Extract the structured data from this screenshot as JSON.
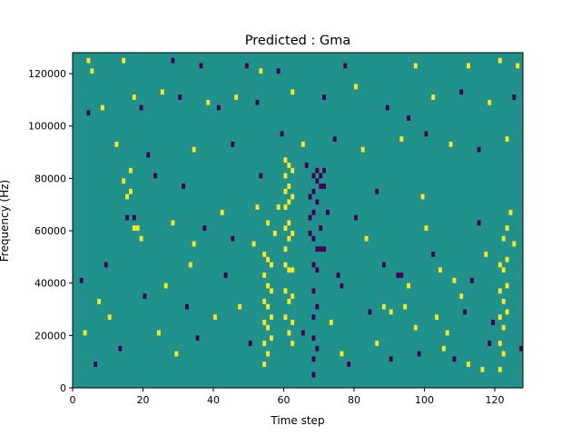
{
  "chart_data": {
    "type": "heatmap",
    "title": "Predicted : Gma",
    "xlabel": "Time step",
    "ylabel": "Frequency (Hz)",
    "xlim": [
      0,
      128
    ],
    "ylim": [
      0,
      128000
    ],
    "xticks": [
      0,
      20,
      40,
      60,
      80,
      100,
      120
    ],
    "xtick_labels": [
      "0",
      "20",
      "40",
      "60",
      "80",
      "100",
      "120"
    ],
    "yticks": [
      0,
      20000,
      40000,
      60000,
      80000,
      100000,
      120000
    ],
    "ytick_labels": [
      "0",
      "20000",
      "40000",
      "60000",
      "80000",
      "100000",
      "120000"
    ],
    "colors": {
      "background": "#21918c",
      "high": "#fde725",
      "low": "#440154"
    },
    "value_legend": {
      "background": 0,
      "high": 1,
      "low": -1
    },
    "grid": false,
    "bins": {
      "time_steps": 128,
      "frequency_bins": 64,
      "bin_width_hz": 2000
    },
    "cells": [
      [
        4,
        124000,
        1
      ],
      [
        5,
        120000,
        1
      ],
      [
        14,
        124000,
        1
      ],
      [
        28,
        124000,
        -1
      ],
      [
        36,
        122000,
        -1
      ],
      [
        49,
        122000,
        -1
      ],
      [
        53,
        120000,
        1
      ],
      [
        58,
        120000,
        -1
      ],
      [
        77,
        122000,
        -1
      ],
      [
        97,
        122000,
        1
      ],
      [
        112,
        122000,
        1
      ],
      [
        121,
        124000,
        1
      ],
      [
        126,
        122000,
        1
      ],
      [
        4,
        104000,
        -1
      ],
      [
        8,
        106000,
        1
      ],
      [
        17,
        110000,
        1
      ],
      [
        19,
        106000,
        -1
      ],
      [
        25,
        112000,
        1
      ],
      [
        30,
        110000,
        -1
      ],
      [
        38,
        108000,
        1
      ],
      [
        41,
        106000,
        -1
      ],
      [
        46,
        110000,
        1
      ],
      [
        52,
        108000,
        -1
      ],
      [
        62,
        112000,
        1
      ],
      [
        71,
        110000,
        -1
      ],
      [
        80,
        114000,
        1
      ],
      [
        89,
        106000,
        -1
      ],
      [
        95,
        102000,
        -1
      ],
      [
        102,
        110000,
        1
      ],
      [
        110,
        112000,
        -1
      ],
      [
        118,
        108000,
        1
      ],
      [
        125,
        110000,
        -1
      ],
      [
        12,
        92000,
        1
      ],
      [
        21,
        88000,
        -1
      ],
      [
        34,
        90000,
        1
      ],
      [
        45,
        92000,
        -1
      ],
      [
        59,
        96000,
        -1
      ],
      [
        65,
        92000,
        1
      ],
      [
        74,
        94000,
        -1
      ],
      [
        82,
        90000,
        1
      ],
      [
        93,
        94000,
        1
      ],
      [
        100,
        96000,
        -1
      ],
      [
        107,
        92000,
        1
      ],
      [
        115,
        90000,
        -1
      ],
      [
        123,
        94000,
        1
      ],
      [
        14,
        78000,
        1
      ],
      [
        15,
        72000,
        1
      ],
      [
        15,
        64000,
        -1
      ],
      [
        16,
        82000,
        1
      ],
      [
        16,
        74000,
        1
      ],
      [
        17,
        64000,
        -1
      ],
      [
        17,
        60000,
        1
      ],
      [
        18,
        60000,
        1
      ],
      [
        19,
        56000,
        1
      ],
      [
        23,
        80000,
        -1
      ],
      [
        28,
        62000,
        1
      ],
      [
        31,
        76000,
        -1
      ],
      [
        34,
        54000,
        1
      ],
      [
        37,
        60000,
        -1
      ],
      [
        42,
        66000,
        1
      ],
      [
        45,
        56000,
        -1
      ],
      [
        51,
        54000,
        1
      ],
      [
        52,
        68000,
        1
      ],
      [
        53,
        80000,
        -1
      ],
      [
        55,
        62000,
        1
      ],
      [
        57,
        58000,
        1
      ],
      [
        58,
        68000,
        1
      ],
      [
        60,
        86000,
        1
      ],
      [
        60,
        80000,
        1
      ],
      [
        60,
        74000,
        1
      ],
      [
        60,
        68000,
        1
      ],
      [
        60,
        60000,
        1
      ],
      [
        60,
        52000,
        1
      ],
      [
        60,
        46000,
        1
      ],
      [
        60,
        36000,
        1
      ],
      [
        60,
        26000,
        1
      ],
      [
        61,
        84000,
        1
      ],
      [
        61,
        76000,
        1
      ],
      [
        61,
        70000,
        1
      ],
      [
        61,
        62000,
        1
      ],
      [
        61,
        56000,
        1
      ],
      [
        61,
        44000,
        1
      ],
      [
        61,
        32000,
        1
      ],
      [
        61,
        20000,
        1
      ],
      [
        62,
        82000,
        1
      ],
      [
        62,
        72000,
        1
      ],
      [
        62,
        58000,
        1
      ],
      [
        62,
        44000,
        1
      ],
      [
        62,
        34000,
        1
      ],
      [
        62,
        24000,
        1
      ],
      [
        62,
        16000,
        1
      ],
      [
        54,
        50000,
        1
      ],
      [
        54,
        42000,
        1
      ],
      [
        54,
        32000,
        1
      ],
      [
        54,
        24000,
        1
      ],
      [
        54,
        16000,
        1
      ],
      [
        54,
        8000,
        1
      ],
      [
        55,
        48000,
        1
      ],
      [
        55,
        38000,
        1
      ],
      [
        55,
        30000,
        1
      ],
      [
        55,
        22000,
        1
      ],
      [
        55,
        12000,
        1
      ],
      [
        56,
        46000,
        1
      ],
      [
        56,
        36000,
        1
      ],
      [
        56,
        26000,
        1
      ],
      [
        56,
        18000,
        1
      ],
      [
        66,
        84000,
        -1
      ],
      [
        67,
        72000,
        -1
      ],
      [
        67,
        64000,
        -1
      ],
      [
        67,
        58000,
        -1
      ],
      [
        68,
        80000,
        -1
      ],
      [
        68,
        74000,
        -1
      ],
      [
        68,
        66000,
        -1
      ],
      [
        68,
        56000,
        -1
      ],
      [
        68,
        46000,
        -1
      ],
      [
        68,
        36000,
        -1
      ],
      [
        68,
        26000,
        -1
      ],
      [
        68,
        18000,
        -1
      ],
      [
        68,
        10000,
        -1
      ],
      [
        68,
        4000,
        -1
      ],
      [
        69,
        82000,
        -1
      ],
      [
        69,
        78000,
        -1
      ],
      [
        69,
        70000,
        -1
      ],
      [
        69,
        52000,
        -1
      ],
      [
        69,
        44000,
        -1
      ],
      [
        69,
        30000,
        -1
      ],
      [
        69,
        14000,
        -1
      ],
      [
        70,
        80000,
        -1
      ],
      [
        70,
        76000,
        -1
      ],
      [
        70,
        60000,
        -1
      ],
      [
        70,
        52000,
        -1
      ],
      [
        71,
        82000,
        -1
      ],
      [
        71,
        76000,
        -1
      ],
      [
        71,
        52000,
        -1
      ],
      [
        72,
        66000,
        -1
      ],
      [
        75,
        42000,
        -1
      ],
      [
        76,
        38000,
        -1
      ],
      [
        78,
        8000,
        -1
      ],
      [
        80,
        64000,
        -1
      ],
      [
        83,
        56000,
        1
      ],
      [
        86,
        74000,
        -1
      ],
      [
        88,
        46000,
        -1
      ],
      [
        90,
        28000,
        1
      ],
      [
        92,
        42000,
        -1
      ],
      [
        93,
        42000,
        -1
      ],
      [
        95,
        38000,
        1
      ],
      [
        97,
        22000,
        1
      ],
      [
        99,
        72000,
        1
      ],
      [
        100,
        60000,
        1
      ],
      [
        102,
        50000,
        -1
      ],
      [
        104,
        44000,
        1
      ],
      [
        106,
        20000,
        1
      ],
      [
        108,
        40000,
        1
      ],
      [
        110,
        34000,
        1
      ],
      [
        112,
        8000,
        1
      ],
      [
        113,
        40000,
        -1
      ],
      [
        115,
        62000,
        -1
      ],
      [
        117,
        50000,
        1
      ],
      [
        119,
        24000,
        -1
      ],
      [
        121,
        46000,
        1
      ],
      [
        121,
        36000,
        1
      ],
      [
        121,
        26000,
        1
      ],
      [
        121,
        16000,
        1
      ],
      [
        121,
        6000,
        1
      ],
      [
        122,
        56000,
        1
      ],
      [
        122,
        44000,
        1
      ],
      [
        122,
        32000,
        1
      ],
      [
        122,
        22000,
        1
      ],
      [
        122,
        12000,
        1
      ],
      [
        123,
        60000,
        1
      ],
      [
        123,
        48000,
        1
      ],
      [
        123,
        38000,
        1
      ],
      [
        123,
        28000,
        1
      ],
      [
        124,
        66000,
        1
      ],
      [
        125,
        54000,
        1
      ],
      [
        127,
        14000,
        -1
      ],
      [
        2,
        40000,
        -1
      ],
      [
        3,
        20000,
        1
      ],
      [
        6,
        8000,
        -1
      ],
      [
        7,
        32000,
        1
      ],
      [
        9,
        46000,
        -1
      ],
      [
        10,
        26000,
        1
      ],
      [
        13,
        14000,
        -1
      ],
      [
        20,
        34000,
        -1
      ],
      [
        24,
        20000,
        1
      ],
      [
        26,
        38000,
        1
      ],
      [
        29,
        12000,
        1
      ],
      [
        32,
        30000,
        -1
      ],
      [
        33,
        46000,
        1
      ],
      [
        35,
        18000,
        -1
      ],
      [
        40,
        26000,
        1
      ],
      [
        43,
        42000,
        -1
      ],
      [
        47,
        30000,
        1
      ],
      [
        50,
        16000,
        -1
      ],
      [
        65,
        20000,
        -1
      ],
      [
        73,
        24000,
        1
      ],
      [
        76,
        12000,
        1
      ],
      [
        84,
        28000,
        -1
      ],
      [
        86,
        16000,
        1
      ],
      [
        88,
        30000,
        1
      ],
      [
        90,
        10000,
        -1
      ],
      [
        94,
        30000,
        1
      ],
      [
        98,
        12000,
        -1
      ],
      [
        103,
        26000,
        1
      ],
      [
        105,
        14000,
        1
      ],
      [
        108,
        10000,
        -1
      ],
      [
        111,
        28000,
        -1
      ],
      [
        116,
        6000,
        1
      ],
      [
        118,
        16000,
        -1
      ]
    ]
  }
}
